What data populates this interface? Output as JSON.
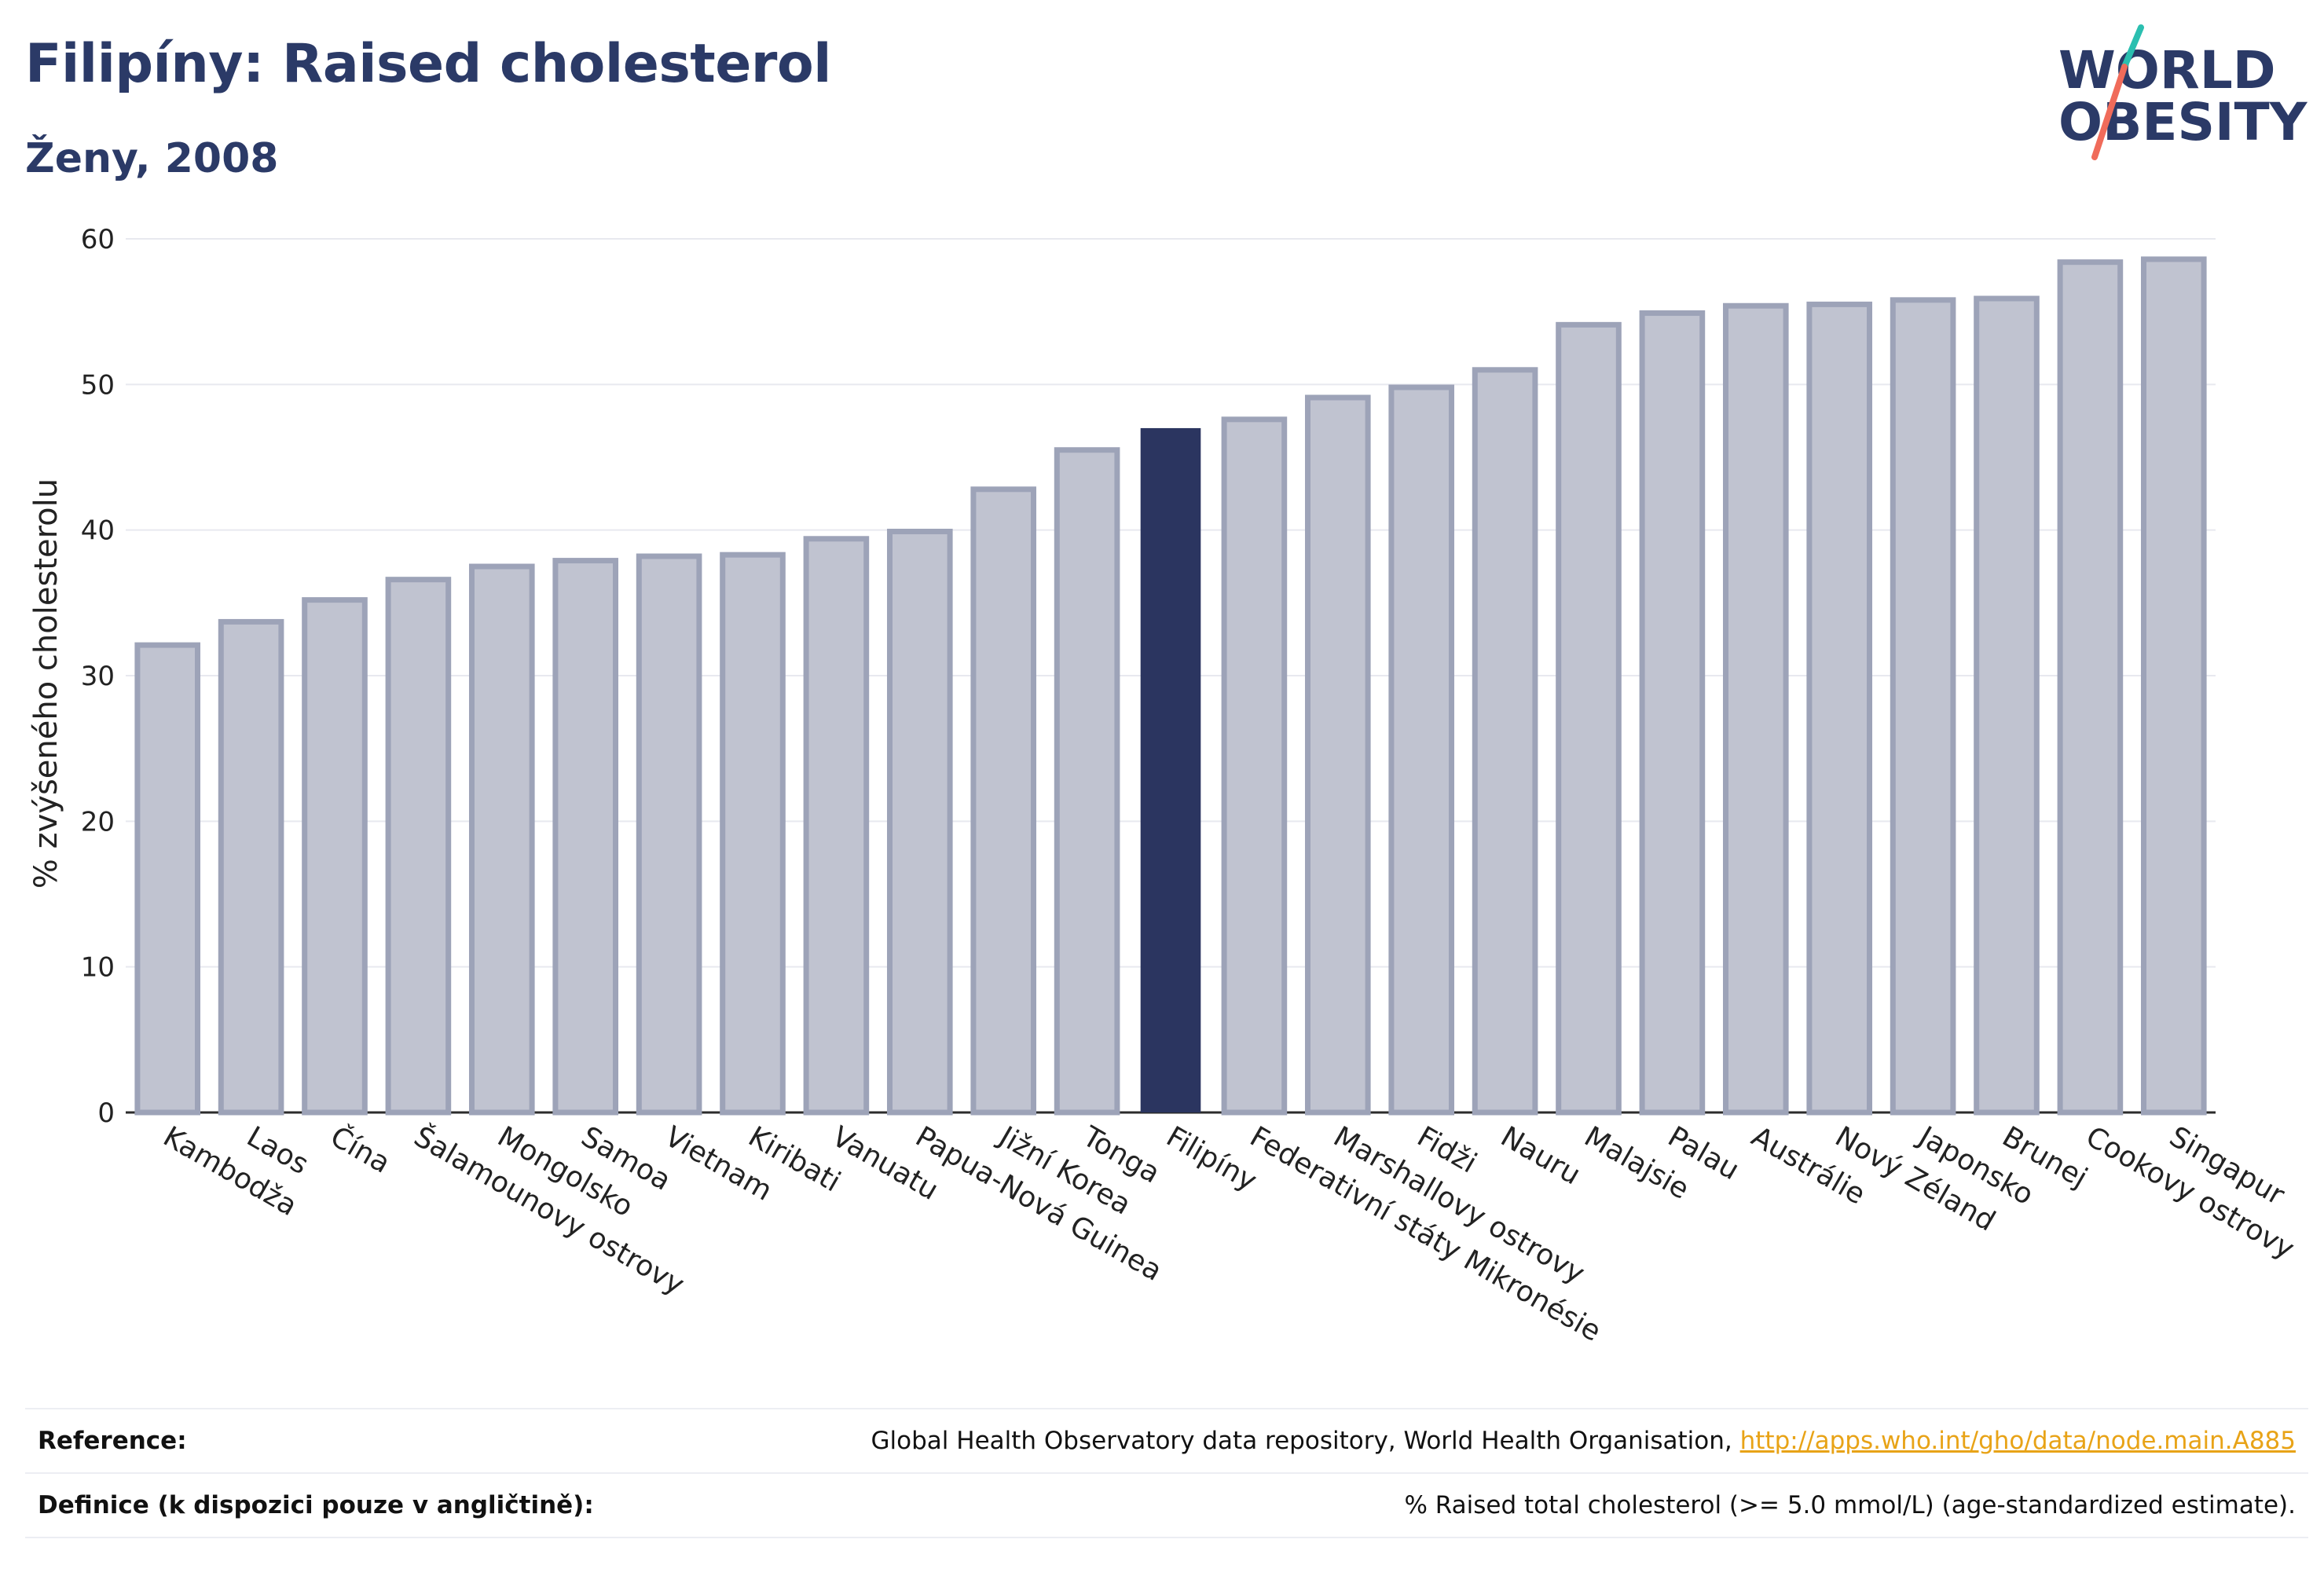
{
  "title": "Filipíny: Raised cholesterol",
  "subtitle": "Ženy, 2008",
  "logo": {
    "line1": "WORLD",
    "line2": "OBESITY"
  },
  "colors": {
    "highlight": "#2b3560",
    "bar_fill": "#c0c3d0",
    "bar_stroke": "#9da3b8",
    "grid": "#e8e9ef",
    "title": "#2b3a67",
    "logo_teal": "#2bbfb0",
    "logo_coral": "#f06b5a",
    "link": "#e8a317"
  },
  "chart_data": {
    "type": "bar",
    "ylabel": "% zvýšeného cholesterolu",
    "ylim": [
      0,
      60
    ],
    "yticks": [
      "0",
      "10",
      "20",
      "30",
      "40",
      "50",
      "60"
    ],
    "grid": true,
    "highlight": "Filipíny",
    "categories": [
      "Kambodža",
      "Laos",
      "Čína",
      "Šalamounovy ostrovy",
      "Mongolsko",
      "Samoa",
      "Vietnam",
      "Kiribati",
      "Vanuatu",
      "Papua-Nová Guinea",
      "Jižní Korea",
      "Tonga",
      "Filipíny",
      "Federativní státy Mikronésie",
      "Marshallovy ostrovy",
      "Fidži",
      "Nauru",
      "Malajsie",
      "Palau",
      "Austrálie",
      "Nový Zéland",
      "Japonsko",
      "Brunej",
      "Cookovy ostrovy",
      "Singapur"
    ],
    "values": [
      32.1,
      33.7,
      35.2,
      36.6,
      37.5,
      37.9,
      38.2,
      38.3,
      39.4,
      39.9,
      42.8,
      45.5,
      47.0,
      47.6,
      49.1,
      49.8,
      51.0,
      54.1,
      54.9,
      55.4,
      55.5,
      55.8,
      55.9,
      58.4,
      58.6
    ]
  },
  "footer": {
    "reference_label": "Reference:",
    "reference_text": "Global Health Observatory data repository, World Health Organisation, ",
    "reference_link": "http://apps.who.int/gho/data/node.main.A885",
    "definition_label": "Definice (k dispozici pouze v angličtině):",
    "definition_text": "% Raised total cholesterol (>= 5.0 mmol/L) (age-standardized estimate)."
  }
}
